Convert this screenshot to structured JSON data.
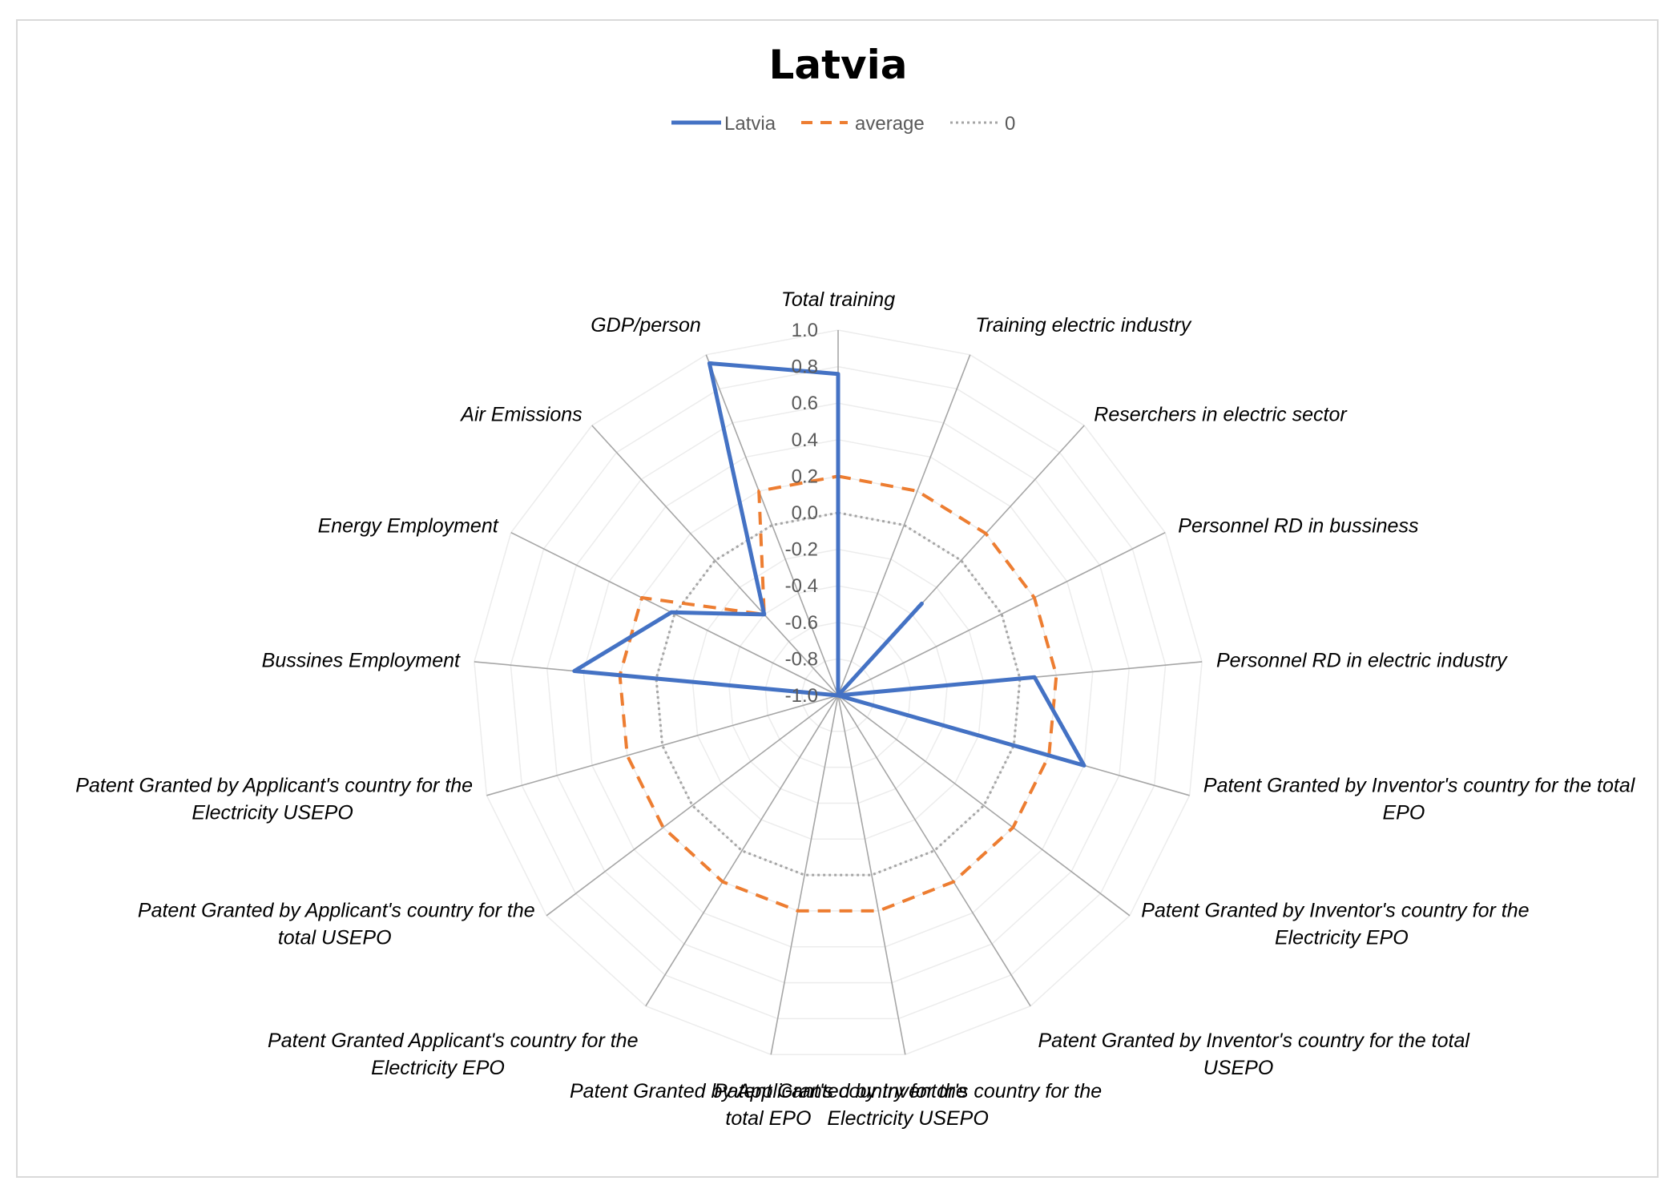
{
  "chart_data": {
    "type": "radar",
    "title": "Latvia",
    "categories": [
      "Total training",
      "Training electric industry",
      "Reserchers in electric sector",
      "Personnel RD in bussiness",
      "Personnel RD in electric industry",
      "Patent Granted by Inventor's country for the total EPO",
      "Patent Granted by Inventor's country for the Electricity EPO",
      "Patent Granted by Inventor's country for the total USEPO",
      "Patent Granted by Inventor's country for the Electricity USEPO",
      "Patent Granted by Applicant's country for the total EPO",
      "Patent Granted Applicant's country for the Electricity EPO",
      "Patent Granted by Applicant's country for the total USEPO",
      "Patent Granted by Applicant's country for the Electricity USEPO",
      "Bussines Employment",
      "Energy Employment",
      "Air Emissions",
      "GDP/person"
    ],
    "series": [
      {
        "name": "Latvia",
        "color": "#4472C4",
        "dash": "solid",
        "values": [
          0.76,
          -1.0,
          -0.32,
          -1.0,
          0.08,
          0.4,
          -1.0,
          -1.0,
          -1.0,
          -1.0,
          -1.0,
          -1.0,
          -1.0,
          0.45,
          0.02,
          -0.4,
          0.95
        ]
      },
      {
        "name": "average",
        "color": "#ED7D31",
        "dash": "dashed",
        "values": [
          0.2,
          0.2,
          0.2,
          0.2,
          0.2,
          0.2,
          0.2,
          0.2,
          0.2,
          0.2,
          0.2,
          0.2,
          0.2,
          0.2,
          0.2,
          -0.4,
          0.2
        ]
      },
      {
        "name": "0",
        "color": "#A5A5A5",
        "dash": "dotted",
        "values": [
          0,
          0,
          0,
          0,
          0,
          0,
          0,
          0,
          0,
          0,
          0,
          0,
          0,
          0,
          0,
          0,
          0
        ]
      }
    ],
    "rlim": [
      -1.0,
      1.0
    ],
    "ticks": [
      "1.0",
      "0.8",
      "0.6",
      "0.4",
      "0.2",
      "0.0",
      "-0.2",
      "-0.4",
      "-0.6",
      "-0.8",
      "-1.0"
    ],
    "legend_position": "top",
    "grid": true
  }
}
